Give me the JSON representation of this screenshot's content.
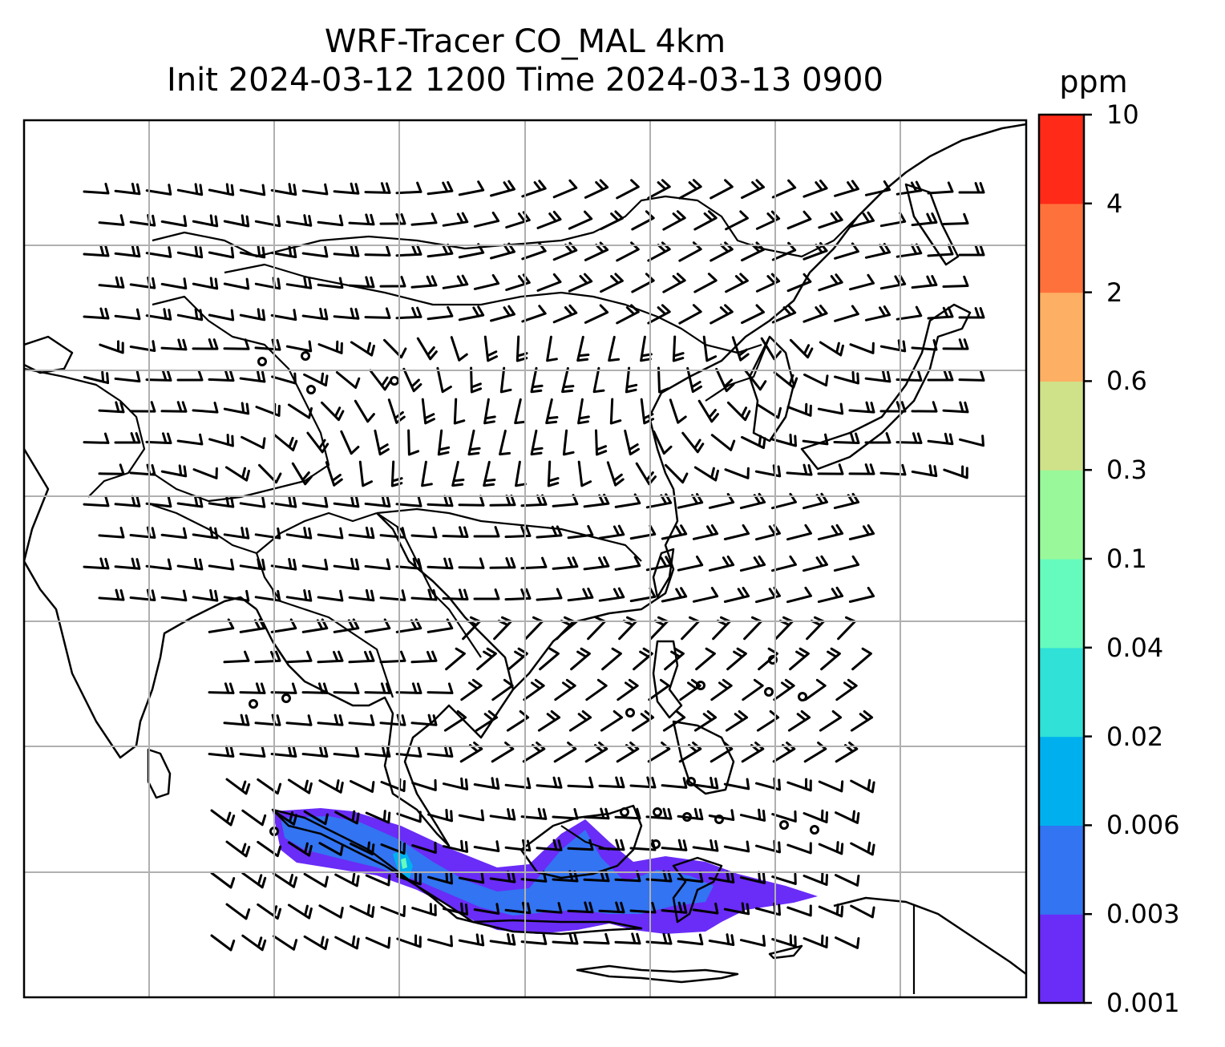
{
  "title": {
    "line1": "WRF-Tracer CO_MAL 4km",
    "line2": "Init 2024-03-12 1200 Time 2024-03-13 0900"
  },
  "colorbar": {
    "unit": "ppm",
    "levels": [
      "0.001",
      "0.003",
      "0.006",
      "0.02",
      "0.04",
      "0.1",
      "0.3",
      "0.6",
      "2",
      "4",
      "10"
    ],
    "colors": [
      "#6a2cf7",
      "#3274f2",
      "#00b0ee",
      "#2fe1d6",
      "#66fbbe",
      "#99f99a",
      "#cfe289",
      "#fdaf63",
      "#ff713b",
      "#ff2a17"
    ]
  },
  "map": {
    "gridlines": true,
    "tracer_field": "CO_MAL",
    "features": [
      "coastlines",
      "country-borders",
      "wind-barbs",
      "calm-circles",
      "co-tracer-plume"
    ]
  }
}
